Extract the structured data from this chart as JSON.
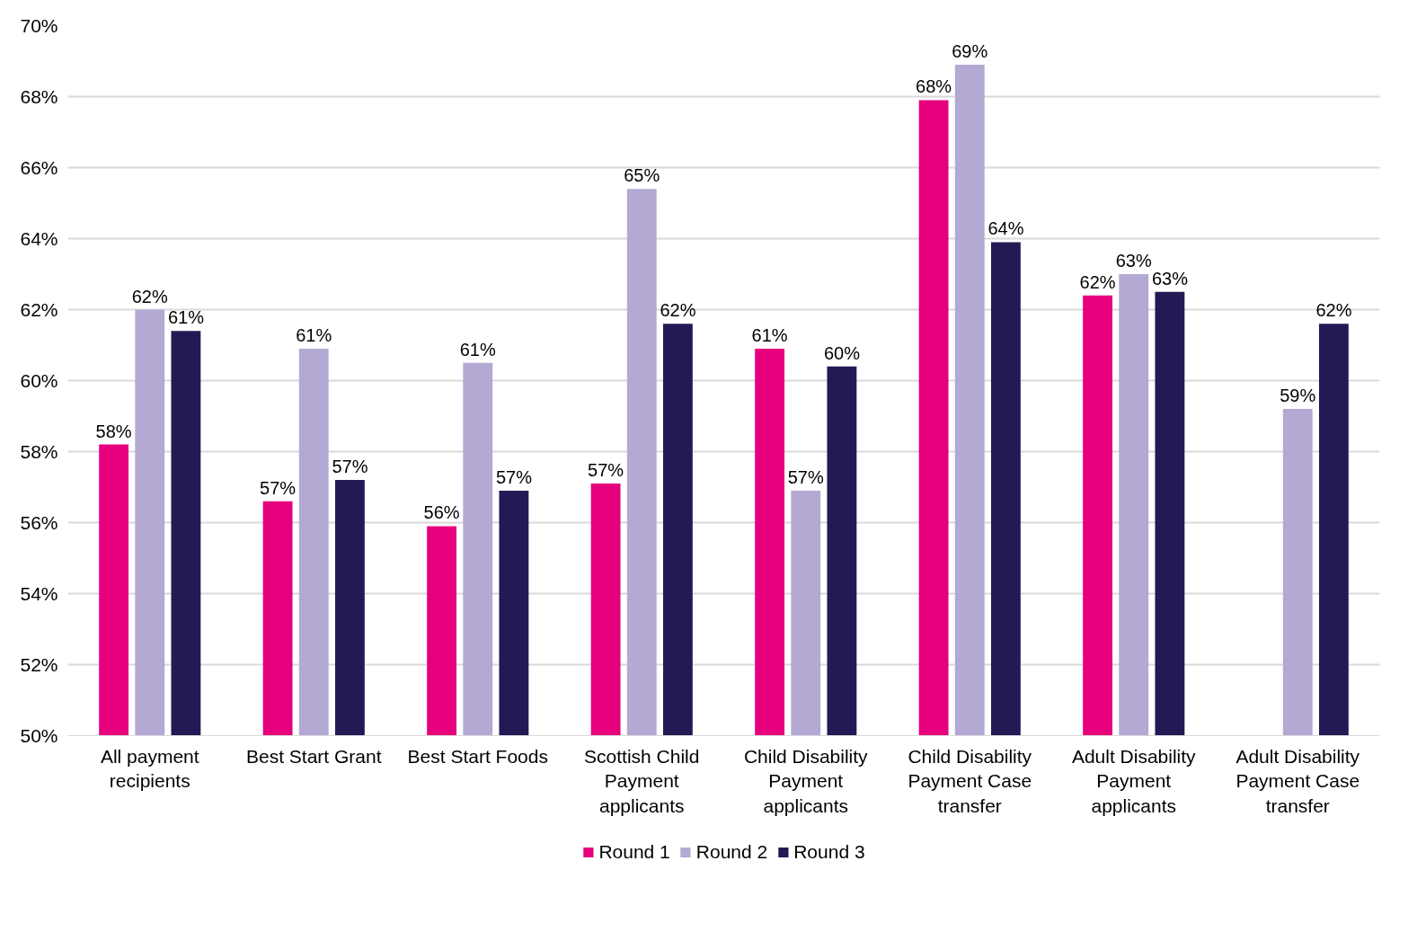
{
  "chart_data": {
    "type": "bar",
    "categories": [
      "All payment recipients",
      "Best Start Grant",
      "Best Start Foods",
      "Scottish Child Payment applicants",
      "Child Disability Payment applicants",
      "Child Disability Payment Case transfer",
      "Adult Disability Payment applicants",
      "Adult Disability Payment Case transfer"
    ],
    "series": [
      {
        "name": "Round 1",
        "color": "#e6007e",
        "values": [
          58.2,
          56.6,
          55.9,
          57.1,
          60.9,
          67.9,
          62.4,
          null
        ],
        "value_labels": [
          "58%",
          "57%",
          "56%",
          "57%",
          "61%",
          "68%",
          "62%",
          null
        ]
      },
      {
        "name": "Round 2",
        "color": "#b3a9d3",
        "values": [
          62.0,
          60.9,
          60.5,
          65.4,
          56.9,
          68.9,
          63.0,
          59.2
        ],
        "value_labels": [
          "62%",
          "61%",
          "61%",
          "65%",
          "57%",
          "69%",
          "63%",
          "59%"
        ]
      },
      {
        "name": "Round 3",
        "color": "#231a55",
        "values": [
          61.4,
          57.2,
          56.9,
          61.6,
          60.4,
          63.9,
          62.5,
          61.6
        ],
        "value_labels": [
          "61%",
          "57%",
          "57%",
          "62%",
          "60%",
          "64%",
          "63%",
          "62%"
        ]
      }
    ],
    "ylim": [
      50,
      70
    ],
    "yticks": [
      {
        "value": 50,
        "label": "50%"
      },
      {
        "value": 52,
        "label": "52%"
      },
      {
        "value": 54,
        "label": "54%"
      },
      {
        "value": 56,
        "label": "56%"
      },
      {
        "value": 58,
        "label": "58%"
      },
      {
        "value": 60,
        "label": "60%"
      },
      {
        "value": 62,
        "label": "62%"
      },
      {
        "value": 64,
        "label": "64%"
      },
      {
        "value": 66,
        "label": "66%"
      },
      {
        "value": 68,
        "label": "68%"
      },
      {
        "value": 70,
        "label": "70%"
      }
    ],
    "grid": "y",
    "legend": "bottom"
  }
}
